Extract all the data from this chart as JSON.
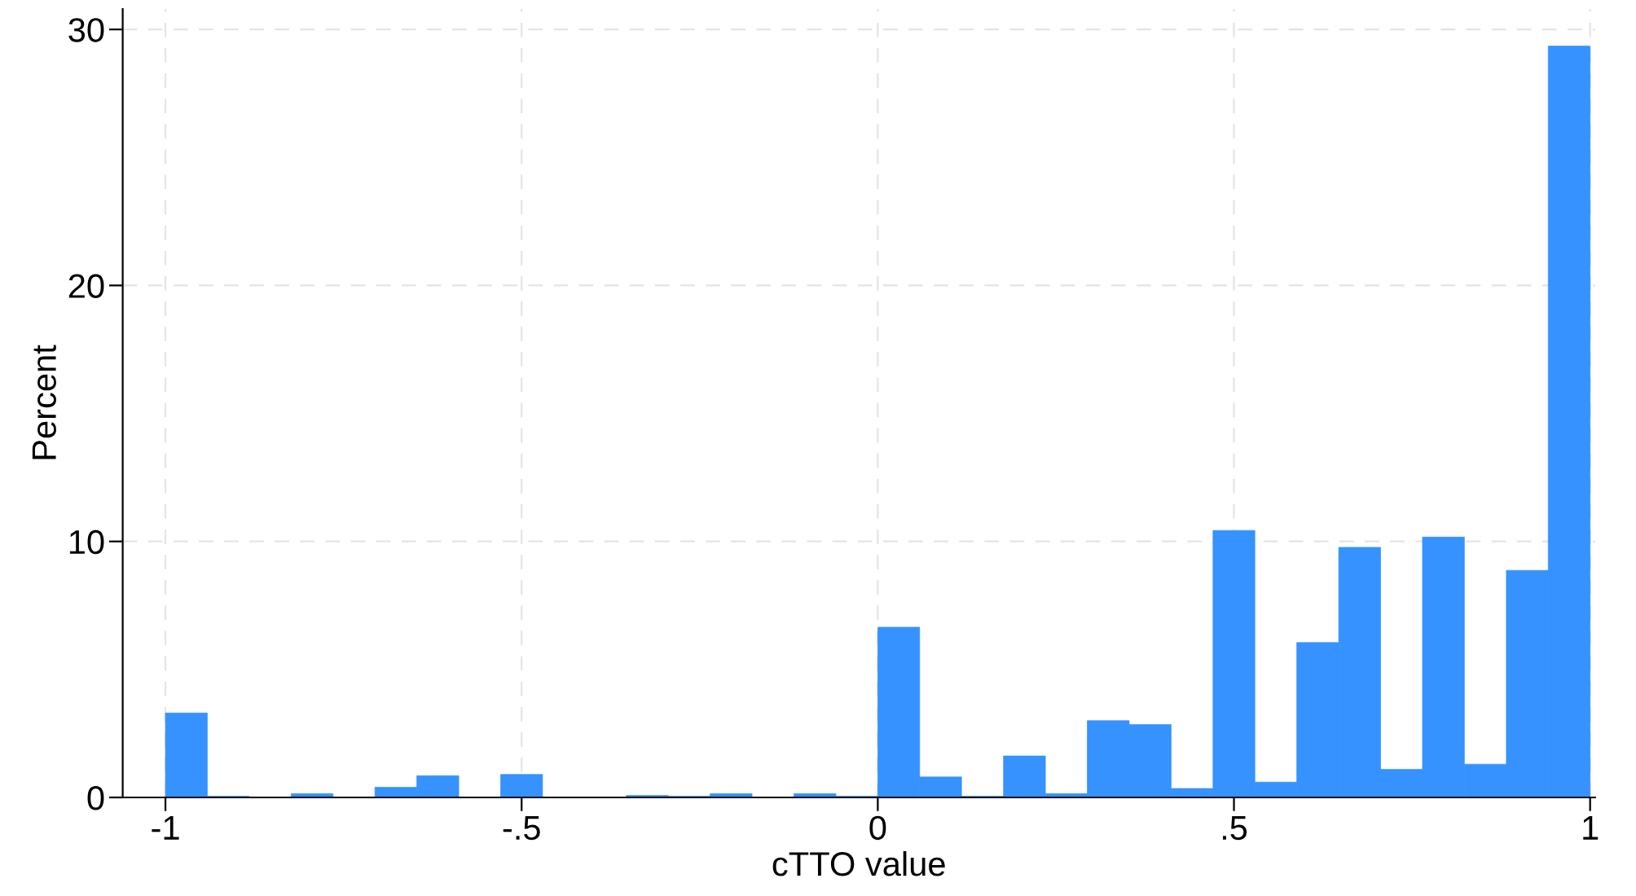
{
  "chart_data": {
    "type": "histogram",
    "xlabel": "cTTO value",
    "ylabel": "Percent",
    "bins": [
      -1,
      -0.9412,
      -0.8824,
      -0.8235,
      -0.7647,
      -0.7059,
      -0.6471,
      -0.5882,
      -0.5294,
      -0.4706,
      -0.4118,
      -0.3529,
      -0.2941,
      -0.2353,
      -0.1765,
      -0.1176,
      -0.0588,
      0,
      0.0588,
      0.1176,
      0.1765,
      0.2353,
      0.2941,
      0.3529,
      0.4118,
      0.4706,
      0.5294,
      0.5882,
      0.6471,
      0.7059,
      0.7647,
      0.8235,
      0.8824,
      0.9412,
      1
    ],
    "values": [
      3.3,
      0.05,
      0,
      0.15,
      0,
      0.4,
      0.85,
      0,
      0.9,
      0,
      0,
      0.08,
      0.05,
      0.15,
      0,
      0.15,
      0.05,
      6.65,
      0.8,
      0.05,
      1.62,
      0.15,
      3.0,
      2.85,
      0.35,
      10.43,
      0.6,
      6.05,
      9.77,
      1.1,
      10.17,
      1.3,
      8.87,
      29.35
    ],
    "color": "#3592ff",
    "xlim": [
      -1.06,
      1.007
    ],
    "ylim": [
      0,
      30.8
    ],
    "xticks": [
      {
        "value": -1,
        "label": "-1"
      },
      {
        "value": -0.5,
        "label": "-.5"
      },
      0,
      {
        "value": 0.5,
        "label": ".5"
      },
      1
    ],
    "yticks": [
      0,
      10,
      20,
      30
    ],
    "grid": true
  }
}
